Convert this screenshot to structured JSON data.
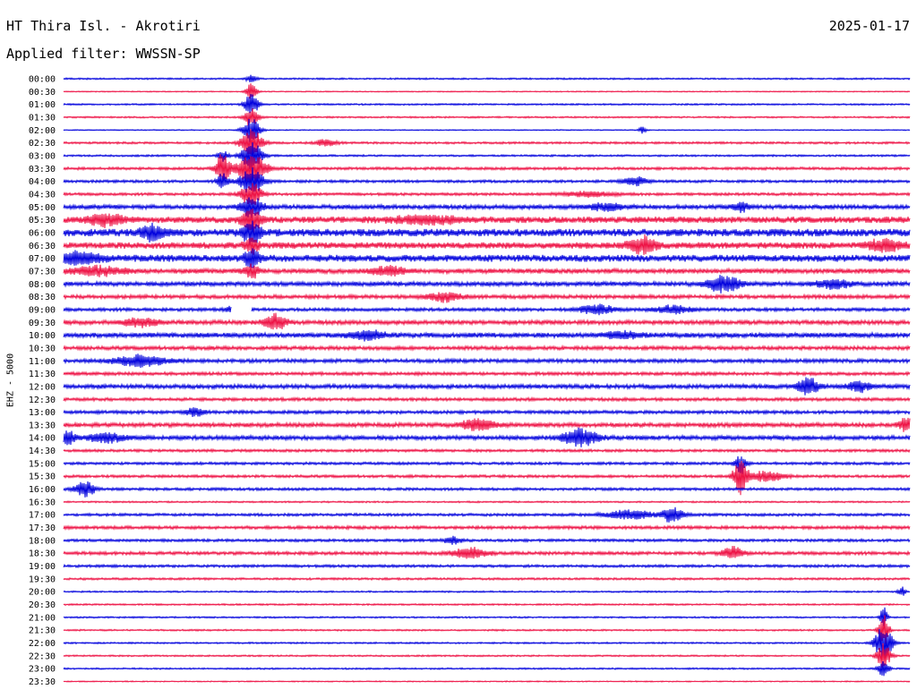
{
  "header": {
    "station": "HT Thira Isl. - Akrotiri",
    "date": "2025-01-17",
    "filter": "Applied filter: WWSSN-SP"
  },
  "channel_label": "EHZ - 5000",
  "colors": {
    "trace_a": "#0000dd",
    "trace_b": "#ee1144"
  },
  "chart_data": {
    "type": "line",
    "title": "HT Thira Isl. - Akrotiri",
    "date": "2025-01-17",
    "filter": "WWSSN-SP",
    "ylabel": "EHZ - 5000",
    "row_labels": [
      "00:00",
      "00:30",
      "01:00",
      "01:30",
      "02:00",
      "02:30",
      "03:00",
      "03:30",
      "04:00",
      "04:30",
      "05:00",
      "05:30",
      "06:00",
      "06:30",
      "07:00",
      "07:30",
      "08:00",
      "08:30",
      "09:00",
      "09:30",
      "10:00",
      "10:30",
      "11:00",
      "11:30",
      "12:00",
      "12:30",
      "13:00",
      "13:30",
      "14:00",
      "14:30",
      "15:00",
      "15:30",
      "16:00",
      "16:30",
      "17:00",
      "17:30",
      "18:00",
      "18:30",
      "19:00",
      "19:30",
      "20:00",
      "20:30",
      "21:00",
      "21:30",
      "22:00",
      "22:30",
      "23:00",
      "23:30"
    ],
    "row_colors_cycle": [
      "#0000dd",
      "#ee1144"
    ],
    "noise_level": [
      0.6,
      0.4,
      0.6,
      0.6,
      0.4,
      0.8,
      0.7,
      1.0,
      1.0,
      1.0,
      1.6,
      2.4,
      2.8,
      2.4,
      2.6,
      1.8,
      1.6,
      1.4,
      1.2,
      1.6,
      1.8,
      1.4,
      1.4,
      1.2,
      1.6,
      1.2,
      1.2,
      1.6,
      1.6,
      1.0,
      1.0,
      1.0,
      1.0,
      0.6,
      1.0,
      1.2,
      1.0,
      1.2,
      1.0,
      0.8,
      0.6,
      0.6,
      0.6,
      0.6,
      0.6,
      0.6,
      0.6,
      0.4
    ],
    "events": [
      {
        "row": 0,
        "x": 0.222,
        "amp": 4,
        "w": 0.006
      },
      {
        "row": 1,
        "x": 0.222,
        "amp": 10,
        "w": 0.006
      },
      {
        "row": 2,
        "x": 0.222,
        "amp": 12,
        "w": 0.008
      },
      {
        "row": 3,
        "x": 0.222,
        "amp": 12,
        "w": 0.008
      },
      {
        "row": 4,
        "x": 0.222,
        "amp": 14,
        "w": 0.01
      },
      {
        "row": 4,
        "x": 0.684,
        "amp": 4,
        "w": 0.004
      },
      {
        "row": 5,
        "x": 0.222,
        "amp": 16,
        "w": 0.012
      },
      {
        "row": 5,
        "x": 0.31,
        "amp": 4,
        "w": 0.012
      },
      {
        "row": 6,
        "x": 0.222,
        "amp": 16,
        "w": 0.012
      },
      {
        "row": 6,
        "x": 0.188,
        "amp": 6,
        "w": 0.006
      },
      {
        "row": 7,
        "x": 0.222,
        "amp": 18,
        "w": 0.016
      },
      {
        "row": 7,
        "x": 0.188,
        "amp": 18,
        "w": 0.008
      },
      {
        "row": 8,
        "x": 0.222,
        "amp": 16,
        "w": 0.014
      },
      {
        "row": 8,
        "x": 0.188,
        "amp": 10,
        "w": 0.006
      },
      {
        "row": 8,
        "x": 0.676,
        "amp": 5,
        "w": 0.014
      },
      {
        "row": 9,
        "x": 0.222,
        "amp": 14,
        "w": 0.012
      },
      {
        "row": 9,
        "x": 0.62,
        "amp": 3,
        "w": 0.03
      },
      {
        "row": 10,
        "x": 0.222,
        "amp": 12,
        "w": 0.012
      },
      {
        "row": 10,
        "x": 0.8,
        "amp": 5,
        "w": 0.01
      },
      {
        "row": 10,
        "x": 0.64,
        "amp": 4,
        "w": 0.02
      },
      {
        "row": 11,
        "x": 0.222,
        "amp": 14,
        "w": 0.01
      },
      {
        "row": 11,
        "x": 0.05,
        "amp": 6,
        "w": 0.02
      },
      {
        "row": 11,
        "x": 0.43,
        "amp": 4,
        "w": 0.04
      },
      {
        "row": 12,
        "x": 0.222,
        "amp": 12,
        "w": 0.01
      },
      {
        "row": 12,
        "x": 0.105,
        "amp": 9,
        "w": 0.012
      },
      {
        "row": 13,
        "x": 0.222,
        "amp": 10,
        "w": 0.008
      },
      {
        "row": 13,
        "x": 0.685,
        "amp": 9,
        "w": 0.016
      },
      {
        "row": 13,
        "x": 0.97,
        "amp": 6,
        "w": 0.02
      },
      {
        "row": 14,
        "x": 0.222,
        "amp": 10,
        "w": 0.008
      },
      {
        "row": 14,
        "x": 0.015,
        "amp": 6,
        "w": 0.03
      },
      {
        "row": 15,
        "x": 0.222,
        "amp": 8,
        "w": 0.008
      },
      {
        "row": 15,
        "x": 0.385,
        "amp": 5,
        "w": 0.02
      },
      {
        "row": 15,
        "x": 0.04,
        "amp": 5,
        "w": 0.03
      },
      {
        "row": 16,
        "x": 0.78,
        "amp": 9,
        "w": 0.02
      },
      {
        "row": 16,
        "x": 0.91,
        "amp": 5,
        "w": 0.02
      },
      {
        "row": 17,
        "x": 0.45,
        "amp": 5,
        "w": 0.02
      },
      {
        "row": 18,
        "x": 0.205,
        "amp": 6,
        "w": 0.01
      },
      {
        "row": 18,
        "x": 0.63,
        "amp": 6,
        "w": 0.02
      },
      {
        "row": 18,
        "x": 0.72,
        "amp": 5,
        "w": 0.02
      },
      {
        "row": 19,
        "x": 0.25,
        "amp": 9,
        "w": 0.012
      },
      {
        "row": 19,
        "x": 0.09,
        "amp": 5,
        "w": 0.02
      },
      {
        "row": 20,
        "x": 0.36,
        "amp": 5,
        "w": 0.02
      },
      {
        "row": 20,
        "x": 0.66,
        "amp": 4,
        "w": 0.02
      },
      {
        "row": 22,
        "x": 0.09,
        "amp": 6,
        "w": 0.03
      },
      {
        "row": 24,
        "x": 0.88,
        "amp": 10,
        "w": 0.012
      },
      {
        "row": 24,
        "x": 0.94,
        "amp": 6,
        "w": 0.012
      },
      {
        "row": 26,
        "x": 0.155,
        "amp": 5,
        "w": 0.01
      },
      {
        "row": 27,
        "x": 0.49,
        "amp": 6,
        "w": 0.02
      },
      {
        "row": 27,
        "x": 0.995,
        "amp": 8,
        "w": 0.008
      },
      {
        "row": 28,
        "x": 0.005,
        "amp": 8,
        "w": 0.008
      },
      {
        "row": 28,
        "x": 0.61,
        "amp": 10,
        "w": 0.02
      },
      {
        "row": 28,
        "x": 0.05,
        "amp": 6,
        "w": 0.02
      },
      {
        "row": 30,
        "x": 0.8,
        "amp": 12,
        "w": 0.006
      },
      {
        "row": 31,
        "x": 0.8,
        "amp": 20,
        "w": 0.008
      },
      {
        "row": 31,
        "x": 0.83,
        "amp": 6,
        "w": 0.02
      },
      {
        "row": 32,
        "x": 0.025,
        "amp": 9,
        "w": 0.012
      },
      {
        "row": 34,
        "x": 0.72,
        "amp": 9,
        "w": 0.012
      },
      {
        "row": 34,
        "x": 0.67,
        "amp": 5,
        "w": 0.03
      },
      {
        "row": 36,
        "x": 0.46,
        "amp": 4,
        "w": 0.01
      },
      {
        "row": 37,
        "x": 0.48,
        "amp": 6,
        "w": 0.02
      },
      {
        "row": 37,
        "x": 0.79,
        "amp": 7,
        "w": 0.012
      },
      {
        "row": 40,
        "x": 0.99,
        "amp": 6,
        "w": 0.004
      },
      {
        "row": 42,
        "x": 0.969,
        "amp": 12,
        "w": 0.004
      },
      {
        "row": 43,
        "x": 0.969,
        "amp": 18,
        "w": 0.006
      },
      {
        "row": 44,
        "x": 0.969,
        "amp": 20,
        "w": 0.01
      },
      {
        "row": 45,
        "x": 0.969,
        "amp": 14,
        "w": 0.008
      },
      {
        "row": 46,
        "x": 0.969,
        "amp": 10,
        "w": 0.006
      }
    ],
    "data_gap": {
      "row": 18,
      "x_start": 0.198,
      "x_end": 0.222
    }
  }
}
